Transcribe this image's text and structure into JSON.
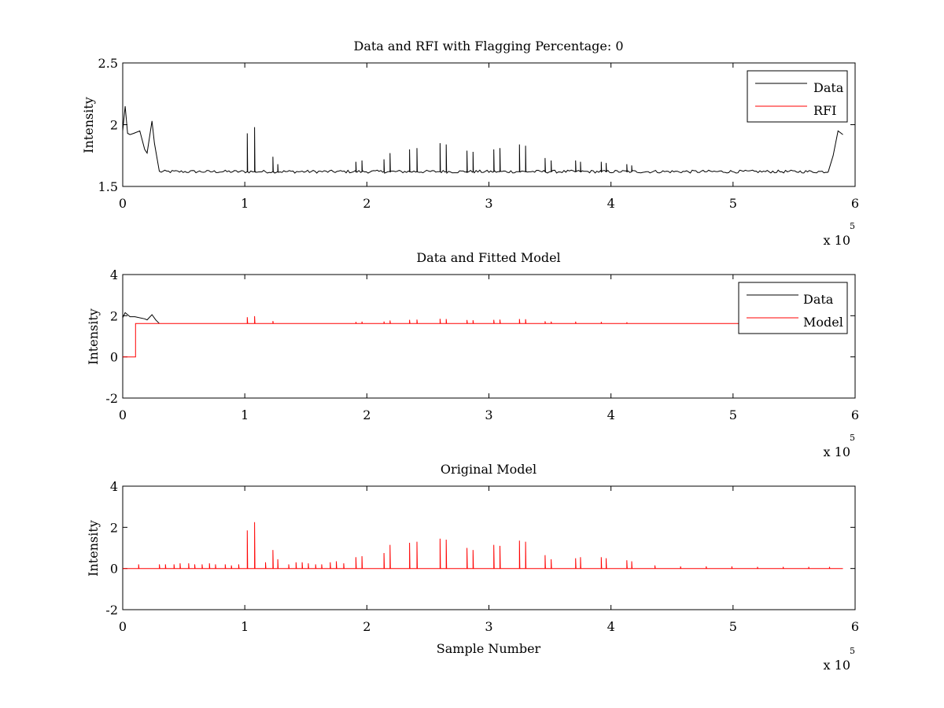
{
  "chart_data": [
    {
      "type": "line",
      "title": "Data and RFI with Flagging Percentage: 0",
      "xlabel": "",
      "ylabel": "Intensity",
      "xlim": [
        0,
        600000
      ],
      "ylim": [
        1.5,
        2.5
      ],
      "x_ticks": [
        "0",
        "1",
        "2",
        "3",
        "4",
        "5",
        "6"
      ],
      "y_ticks": [
        "1.5",
        "2",
        "2.5"
      ],
      "x_multiplier": "x 10",
      "x_multiplier_exp": "5",
      "legend_position": "top-right",
      "legend": [
        "Data",
        "RFI"
      ],
      "series": [
        {
          "name": "Data",
          "color": "#000000",
          "baseline": 1.62,
          "x": [
            0,
            2000,
            4000,
            6000,
            9000,
            14000,
            18000,
            20000,
            24000,
            26000,
            30000,
            40000,
            578000,
            582000,
            586000,
            590000
          ],
          "y": [
            1.95,
            2.15,
            1.93,
            1.92,
            1.93,
            1.95,
            1.8,
            1.77,
            2.03,
            1.85,
            1.62,
            1.62,
            1.62,
            1.75,
            1.95,
            1.92
          ],
          "spikes": [
            [
              102000,
              1.93
            ],
            [
              108000,
              1.98
            ],
            [
              123000,
              1.74
            ],
            [
              127000,
              1.68
            ],
            [
              191000,
              1.7
            ],
            [
              196000,
              1.71
            ],
            [
              214000,
              1.72
            ],
            [
              219000,
              1.77
            ],
            [
              235000,
              1.8
            ],
            [
              241000,
              1.81
            ],
            [
              260000,
              1.85
            ],
            [
              265000,
              1.84
            ],
            [
              282000,
              1.79
            ],
            [
              287000,
              1.78
            ],
            [
              304000,
              1.8
            ],
            [
              309000,
              1.81
            ],
            [
              325000,
              1.84
            ],
            [
              330000,
              1.83
            ],
            [
              346000,
              1.73
            ],
            [
              351000,
              1.71
            ],
            [
              371000,
              1.71
            ],
            [
              375000,
              1.7
            ],
            [
              392000,
              1.7
            ],
            [
              396000,
              1.69
            ],
            [
              413000,
              1.68
            ],
            [
              417000,
              1.67
            ]
          ]
        },
        {
          "name": "RFI",
          "color": "#ff0000",
          "x": [],
          "y": []
        }
      ]
    },
    {
      "type": "line",
      "title": "Data and Fitted Model",
      "xlabel": "",
      "ylabel": "Intensity",
      "xlim": [
        0,
        600000
      ],
      "ylim": [
        -2,
        4
      ],
      "x_ticks": [
        "0",
        "1",
        "2",
        "3",
        "4",
        "5",
        "6"
      ],
      "y_ticks": [
        "-2",
        "0",
        "2",
        "4"
      ],
      "x_multiplier": "x 10",
      "x_multiplier_exp": "5",
      "legend_position": "top-right",
      "legend": [
        "Data",
        "Model"
      ],
      "series": [
        {
          "name": "Data",
          "color": "#000000",
          "x": [
            0,
            2000,
            6000,
            10000,
            18000,
            20000,
            24000,
            27000,
            30000
          ],
          "y": [
            1.9,
            2.15,
            1.95,
            1.95,
            1.85,
            1.8,
            2.05,
            1.8,
            1.62
          ],
          "spikes": []
        },
        {
          "name": "Model",
          "color": "#ff0000",
          "baseline": 1.62,
          "x": [
            0,
            10500,
            10500,
            580000
          ],
          "y": [
            0,
            0,
            1.62,
            1.62
          ],
          "spikes": [
            [
              102000,
              1.93
            ],
            [
              108000,
              1.98
            ],
            [
              123000,
              1.74
            ],
            [
              191000,
              1.7
            ],
            [
              196000,
              1.71
            ],
            [
              214000,
              1.72
            ],
            [
              219000,
              1.77
            ],
            [
              235000,
              1.8
            ],
            [
              241000,
              1.81
            ],
            [
              260000,
              1.85
            ],
            [
              265000,
              1.84
            ],
            [
              282000,
              1.79
            ],
            [
              287000,
              1.78
            ],
            [
              304000,
              1.8
            ],
            [
              309000,
              1.81
            ],
            [
              325000,
              1.84
            ],
            [
              330000,
              1.83
            ],
            [
              346000,
              1.73
            ],
            [
              351000,
              1.71
            ],
            [
              371000,
              1.71
            ],
            [
              392000,
              1.7
            ],
            [
              413000,
              1.68
            ]
          ]
        }
      ]
    },
    {
      "type": "line",
      "title": "Original Model",
      "xlabel": "Sample Number",
      "ylabel": "Intensity",
      "xlim": [
        0,
        600000
      ],
      "ylim": [
        -2,
        4
      ],
      "x_ticks": [
        "0",
        "1",
        "2",
        "3",
        "4",
        "5",
        "6"
      ],
      "y_ticks": [
        "-2",
        "0",
        "2",
        "4"
      ],
      "x_multiplier": "x 10",
      "x_multiplier_exp": "5",
      "legend_position": "none",
      "legend": [],
      "series": [
        {
          "name": "",
          "color": "#ff0000",
          "baseline": 0,
          "x": [
            0,
            590000
          ],
          "y": [
            0,
            0
          ],
          "spikes": [
            [
              13000,
              0.2
            ],
            [
              30000,
              0.2
            ],
            [
              35000,
              0.2
            ],
            [
              42000,
              0.2
            ],
            [
              47000,
              0.25
            ],
            [
              54000,
              0.25
            ],
            [
              59000,
              0.2
            ],
            [
              65000,
              0.2
            ],
            [
              71000,
              0.25
            ],
            [
              76000,
              0.2
            ],
            [
              84000,
              0.2
            ],
            [
              89000,
              0.15
            ],
            [
              95000,
              0.2
            ],
            [
              102000,
              1.85
            ],
            [
              108000,
              2.25
            ],
            [
              117000,
              0.3
            ],
            [
              123000,
              0.9
            ],
            [
              127000,
              0.45
            ],
            [
              136000,
              0.2
            ],
            [
              142000,
              0.3
            ],
            [
              147000,
              0.3
            ],
            [
              152000,
              0.25
            ],
            [
              158000,
              0.2
            ],
            [
              163000,
              0.2
            ],
            [
              170000,
              0.3
            ],
            [
              175000,
              0.35
            ],
            [
              181000,
              0.25
            ],
            [
              191000,
              0.55
            ],
            [
              196000,
              0.6
            ],
            [
              214000,
              0.75
            ],
            [
              219000,
              1.15
            ],
            [
              235000,
              1.25
            ],
            [
              241000,
              1.3
            ],
            [
              260000,
              1.45
            ],
            [
              265000,
              1.4
            ],
            [
              282000,
              1.0
            ],
            [
              287000,
              0.9
            ],
            [
              304000,
              1.15
            ],
            [
              309000,
              1.1
            ],
            [
              325000,
              1.35
            ],
            [
              330000,
              1.3
            ],
            [
              346000,
              0.65
            ],
            [
              351000,
              0.45
            ],
            [
              371000,
              0.5
            ],
            [
              375000,
              0.55
            ],
            [
              392000,
              0.55
            ],
            [
              396000,
              0.5
            ],
            [
              413000,
              0.4
            ],
            [
              417000,
              0.35
            ],
            [
              436000,
              0.15
            ],
            [
              457000,
              0.1
            ],
            [
              478000,
              0.1
            ],
            [
              499000,
              0.1
            ],
            [
              520000,
              0.08
            ],
            [
              541000,
              0.08
            ],
            [
              562000,
              0.08
            ],
            [
              579000,
              0.08
            ]
          ]
        }
      ]
    }
  ]
}
